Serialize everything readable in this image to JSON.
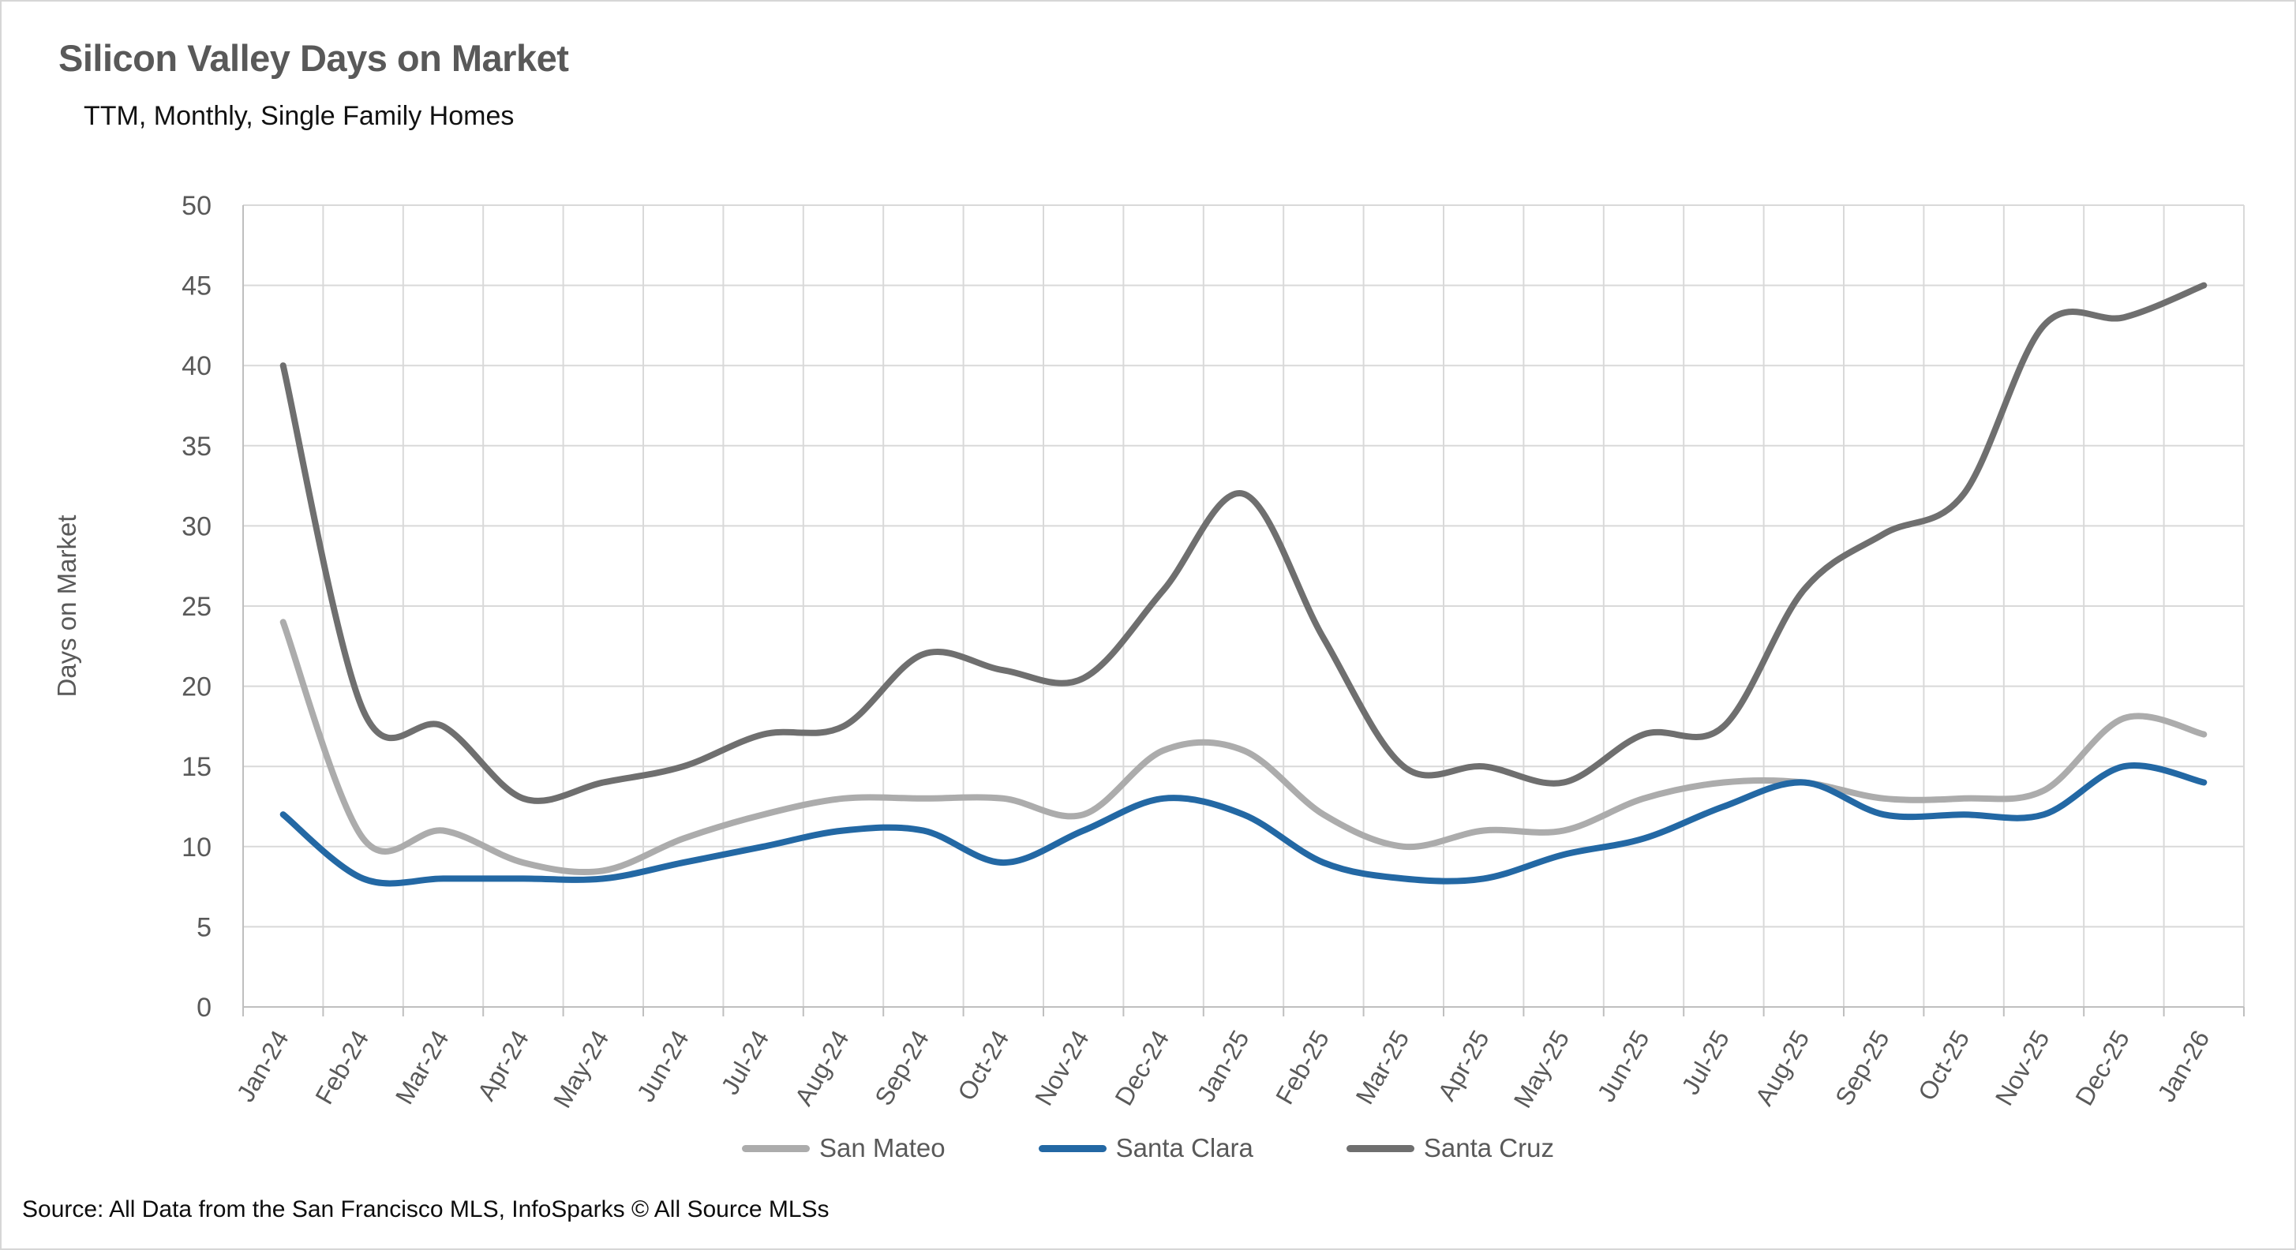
{
  "title": "Silicon Valley Days on Market",
  "subtitle": "TTM, Monthly, Single Family Homes",
  "source_note": "Source: All Data from the San Francisco MLS, InfoSparks © All Source MLSs",
  "colors": {
    "title_text": "#595959",
    "axis_text": "#595959",
    "gridline": "#d9d9d9",
    "axis_line": "#bfbfbf",
    "san_mateo": "#acacac",
    "santa_clara": "#2368a4",
    "santa_cruz": "#6f6f6f"
  },
  "chart_data": {
    "type": "line",
    "title": "Silicon Valley Days on Market",
    "subtitle": "TTM, Monthly, Single Family Homes",
    "xlabel": "",
    "ylabel": "Days on Market",
    "ylim": [
      0,
      50
    ],
    "ytick_step": 5,
    "grid": true,
    "legend_position": "bottom",
    "line_style": "smooth",
    "categories": [
      "Jan-24",
      "Feb-24",
      "Mar-24",
      "Apr-24",
      "May-24",
      "Jun-24",
      "Jul-24",
      "Aug-24",
      "Sep-24",
      "Oct-24",
      "Nov-24",
      "Dec-24",
      "Jan-25",
      "Feb-25",
      "Mar-25",
      "Apr-25",
      "May-25",
      "Jun-25",
      "Jul-25",
      "Aug-25",
      "Sep-25",
      "Oct-25",
      "Nov-25",
      "Dec-25",
      "Jan-26"
    ],
    "series": [
      {
        "name": "San Mateo",
        "color": "#acacac",
        "values": [
          24,
          10.5,
          11,
          9,
          8.5,
          10.5,
          12,
          13,
          13,
          13,
          12,
          16,
          16,
          12,
          10,
          11,
          11,
          13,
          14,
          14,
          13,
          13,
          13.5,
          18,
          17
        ]
      },
      {
        "name": "Santa Clara",
        "color": "#2368a4",
        "values": [
          12,
          8,
          8,
          8,
          8,
          9,
          10,
          11,
          11,
          9,
          11,
          13,
          12,
          9,
          8,
          8,
          9.5,
          10.5,
          12.5,
          14,
          12,
          12,
          12,
          15,
          14
        ]
      },
      {
        "name": "Santa Cruz",
        "color": "#6f6f6f",
        "values": [
          40,
          18.5,
          17.5,
          13,
          14,
          15,
          17,
          17.5,
          22,
          21,
          20.5,
          26,
          32,
          23,
          15,
          15,
          14,
          17,
          17.5,
          26,
          29.5,
          32,
          42.5,
          43,
          45
        ]
      }
    ]
  }
}
